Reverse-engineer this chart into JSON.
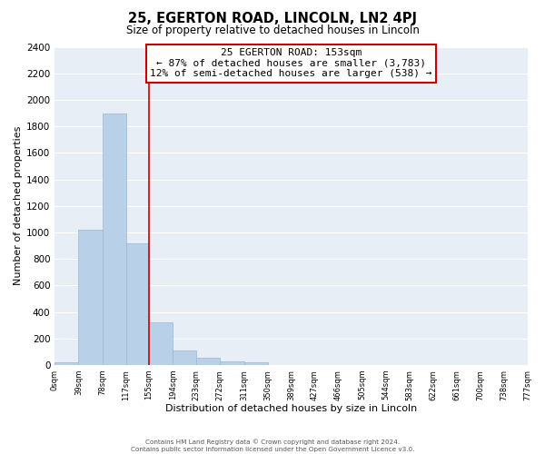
{
  "title": "25, EGERTON ROAD, LINCOLN, LN2 4PJ",
  "subtitle": "Size of property relative to detached houses in Lincoln",
  "xlabel": "Distribution of detached houses by size in Lincoln",
  "ylabel": "Number of detached properties",
  "bar_edges": [
    0,
    39,
    78,
    117,
    155,
    194,
    233,
    272,
    311,
    350,
    389,
    427,
    466,
    505,
    544,
    583,
    622,
    661,
    700,
    738,
    777
  ],
  "bar_heights": [
    20,
    1020,
    1900,
    920,
    325,
    110,
    55,
    30,
    20,
    0,
    0,
    0,
    0,
    0,
    0,
    0,
    0,
    0,
    0,
    0
  ],
  "bar_color": "#b8d0e8",
  "bar_edgecolor": "#98b8d8",
  "vline_x": 155,
  "vline_color": "#cc0000",
  "vline_linewidth": 1.2,
  "ylim": [
    0,
    2400
  ],
  "yticks": [
    0,
    200,
    400,
    600,
    800,
    1000,
    1200,
    1400,
    1600,
    1800,
    2000,
    2200,
    2400
  ],
  "annotation_title": "25 EGERTON ROAD: 153sqm",
  "annotation_line1": "← 87% of detached houses are smaller (3,783)",
  "annotation_line2": "12% of semi-detached houses are larger (538) →",
  "footer1": "Contains HM Land Registry data © Crown copyright and database right 2024.",
  "footer2": "Contains public sector information licensed under the Open Government Licence v3.0.",
  "tick_labels": [
    "0sqm",
    "39sqm",
    "78sqm",
    "117sqm",
    "155sqm",
    "194sqm",
    "233sqm",
    "272sqm",
    "311sqm",
    "350sqm",
    "389sqm",
    "427sqm",
    "466sqm",
    "505sqm",
    "544sqm",
    "583sqm",
    "622sqm",
    "661sqm",
    "700sqm",
    "738sqm",
    "777sqm"
  ],
  "background_color": "#ffffff",
  "plot_bg_color": "#e8eef5",
  "grid_color": "#ffffff"
}
